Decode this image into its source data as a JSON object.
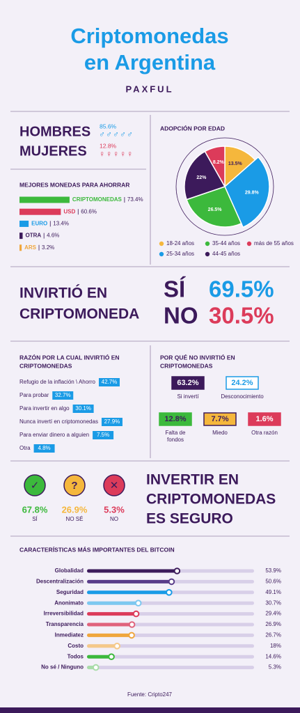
{
  "header": {
    "title": [
      "Criptomonedas",
      "en Argentina"
    ],
    "brand": "PAXFUL"
  },
  "gender": [
    {
      "label": "HOMBRES",
      "value": "85.6%",
      "symbols": "♂♂♂♂♂",
      "color": "#1a9be6"
    },
    {
      "label": "MUJERES",
      "value": "12.8%",
      "symbols": "♀♀♀♀♀",
      "color": "#dc3b5a"
    }
  ],
  "chart_data": [
    {
      "type": "bar",
      "title": "MEJORES MONEDAS PARA AHORRAR",
      "categories": [
        "CRIPTOMONEDAS",
        "USD",
        "EURO",
        "OTRA",
        "ARS"
      ],
      "values": [
        73.4,
        60.6,
        13.4,
        4.6,
        3.2
      ],
      "value_labels": [
        "73.4%",
        "60.6%",
        "13.4%",
        "4.6%",
        "3.2%"
      ],
      "colors": [
        "#3cb93c",
        "#dc3b5a",
        "#1a9be6",
        "#3c1a5b",
        "#f0a63c"
      ],
      "xlim": [
        0,
        100
      ]
    },
    {
      "type": "pie",
      "title": "ADOPCIÓN POR EDAD",
      "categories": [
        "18-24 años",
        "25-34 años",
        "35-44 años",
        "44-45 años",
        "más de 55 años"
      ],
      "values": [
        13.5,
        29.8,
        26.5,
        22,
        8.2
      ],
      "value_labels": [
        "13.5%",
        "29.8%",
        "26.5%",
        "22%",
        "8.2%"
      ],
      "colors": [
        "#f5b73c",
        "#1a9be6",
        "#3cb93c",
        "#3c1a5b",
        "#dc3b5a"
      ]
    },
    {
      "type": "bar",
      "title": "CARACTERÍSTICAS MÁS IMPORTANTES DEL BITCOIN",
      "categories": [
        "Globalidad",
        "Descentralización",
        "Seguridad",
        "Anonimato",
        "Irreversibilidad",
        "Transparencia",
        "Inmediatez",
        "Costo",
        "Todos",
        "No sé / Ninguno"
      ],
      "values": [
        53.9,
        50.6,
        49.1,
        30.7,
        29.4,
        26.9,
        26.7,
        18,
        14.6,
        5.3
      ],
      "value_labels": [
        "53.9%",
        "50.6%",
        "49.1%",
        "30.7%",
        "29.4%",
        "26.9%",
        "26.7%",
        "18%",
        "14.6%",
        "5.3%"
      ],
      "colors": [
        "#3c1a5b",
        "#5a3d8a",
        "#1a9be6",
        "#7cc8f0",
        "#dc3b5a",
        "#e0637c",
        "#f0a63c",
        "#f5c98a",
        "#3cb93c",
        "#a8dca8"
      ],
      "xlim": [
        0,
        100
      ]
    }
  ],
  "invest": {
    "title": [
      "INVIRTIÓ EN",
      "CRIPTOMONEDA"
    ],
    "answers": [
      {
        "label": "SÍ",
        "value": "69.5%",
        "color": "#1a9be6"
      },
      {
        "label": "NO",
        "value": "30.5%",
        "color": "#dc3b5a"
      }
    ]
  },
  "reasons": {
    "title": [
      "RAZÓN POR LA CUAL INVIRTIÓ EN",
      "CRIPTOMONEDAS"
    ],
    "items": [
      {
        "label": "Refugio de la inflación \\ Ahorro",
        "value": "42.7%"
      },
      {
        "label": "Para probar",
        "value": "32.7%"
      },
      {
        "label": "Para invertir en algo",
        "value": "30.1%"
      },
      {
        "label": "Nunca invertí en criptomonedas",
        "value": "27.9%"
      },
      {
        "label": "Para enviar dinero a alguien",
        "value": "7.5%"
      },
      {
        "label": "Otra",
        "value": "4.8%"
      }
    ]
  },
  "not_invested": {
    "title": [
      "POR QUÉ NO INVIRTIÓ EN",
      "CRIPTOMONEDAS"
    ],
    "items": [
      {
        "value": "63.2%",
        "label": [
          "Si invertí"
        ],
        "fill": "#3c1a5b",
        "border": "#3c1a5b",
        "text_color": "#ffffff"
      },
      {
        "value": "24.2%",
        "label": [
          "Desconocimiento"
        ],
        "fill": "#ffffff",
        "border": "#1a9be6",
        "text_color": "#1a9be6"
      },
      {
        "value": "12.8%",
        "label": [
          "Falta de",
          "fondos"
        ],
        "fill": "#3cb93c",
        "border": "#3cb93c",
        "text_color": "#3c1a5b"
      },
      {
        "value": "7.7%",
        "label": [
          "Miedo"
        ],
        "fill": "#f5b73c",
        "border": "#3c1a5b",
        "text_color": "#3c1a5b"
      },
      {
        "value": "1.6%",
        "label": [
          "Otra razón"
        ],
        "fill": "#dc3b5a",
        "border": "#dc3b5a",
        "text_color": "#ffffff"
      }
    ]
  },
  "safety": {
    "title": [
      "INVERTIR EN",
      "CRIPTOMONEDAS",
      "ES SEGURO"
    ],
    "items": [
      {
        "icon": "✓",
        "value": "67.8%",
        "label": "SÍ",
        "color": "#3cb93c"
      },
      {
        "icon": "?",
        "value": "26.9%",
        "label": "NO SÉ",
        "color": "#f5b73c"
      },
      {
        "icon": "✕",
        "value": "5.3%",
        "label": "NO",
        "color": "#dc3b5a"
      }
    ]
  },
  "footer": {
    "source": "Fuente: Cripto247"
  }
}
